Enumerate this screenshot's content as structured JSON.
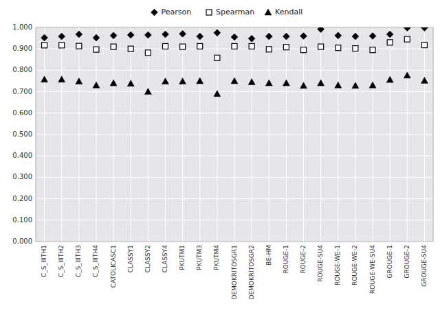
{
  "chart_data": {
    "type": "scatter",
    "categories": [
      "C_S_IIITH1",
      "C_S_IIITH2",
      "C_S_IIITH3",
      "C_S_IIITH4",
      "CATOLICASC1",
      "CLASSY1",
      "CLASSY2",
      "CLASSY4",
      "PKUTM1",
      "PKUTM3",
      "PKUTM4",
      "DEMOKRITOSGR1",
      "DEMOKRITOSGR2",
      "BE-HM",
      "ROUGE-1",
      "ROUGE-2",
      "ROUGE-SU4",
      "ROUGE-WE-1",
      "ROUGE-WE-2",
      "ROUGE-WE-SU4",
      "GROUGE-1",
      "GROUGE-2",
      "GROUGE-SU4"
    ],
    "series": [
      {
        "name": "Pearson",
        "color": "#000000",
        "marker": "diamond",
        "values": [
          0.952,
          0.958,
          0.968,
          0.952,
          0.962,
          0.965,
          0.965,
          0.968,
          0.97,
          0.958,
          0.975,
          0.955,
          0.948,
          0.958,
          0.958,
          0.96,
          0.992,
          0.962,
          0.958,
          0.96,
          0.968,
          0.998,
          0.998
        ]
      },
      {
        "name": "Spearman",
        "color": "#000000",
        "marker": "square-open",
        "values": [
          0.917,
          0.917,
          0.913,
          0.897,
          0.91,
          0.9,
          0.882,
          0.912,
          0.91,
          0.912,
          0.858,
          0.912,
          0.912,
          0.898,
          0.908,
          0.895,
          0.91,
          0.905,
          0.902,
          0.895,
          0.93,
          0.945,
          0.918
        ]
      },
      {
        "name": "Kendall",
        "color": "#000000",
        "marker": "triangle",
        "values": [
          0.757,
          0.757,
          0.748,
          0.73,
          0.74,
          0.738,
          0.7,
          0.748,
          0.748,
          0.75,
          0.69,
          0.75,
          0.745,
          0.74,
          0.74,
          0.728,
          0.74,
          0.73,
          0.728,
          0.73,
          0.756,
          0.776,
          0.752
        ]
      }
    ],
    "ylim": [
      0.0,
      1.0
    ],
    "yticks": [
      {
        "value": 0.0,
        "label": "0.000"
      },
      {
        "value": 0.1,
        "label": "0.100"
      },
      {
        "value": 0.2,
        "label": "0.200"
      },
      {
        "value": 0.3,
        "label": "0.300"
      },
      {
        "value": 0.4,
        "label": "0.400"
      },
      {
        "value": 0.5,
        "label": "0.500"
      },
      {
        "value": 0.6,
        "label": "0.600"
      },
      {
        "value": 0.7,
        "label": "0.700"
      },
      {
        "value": 0.8,
        "label": "0.800"
      },
      {
        "value": 0.9,
        "label": "0.900"
      },
      {
        "value": 1.0,
        "label": "1.000"
      }
    ],
    "grid": true,
    "legend": "top"
  }
}
